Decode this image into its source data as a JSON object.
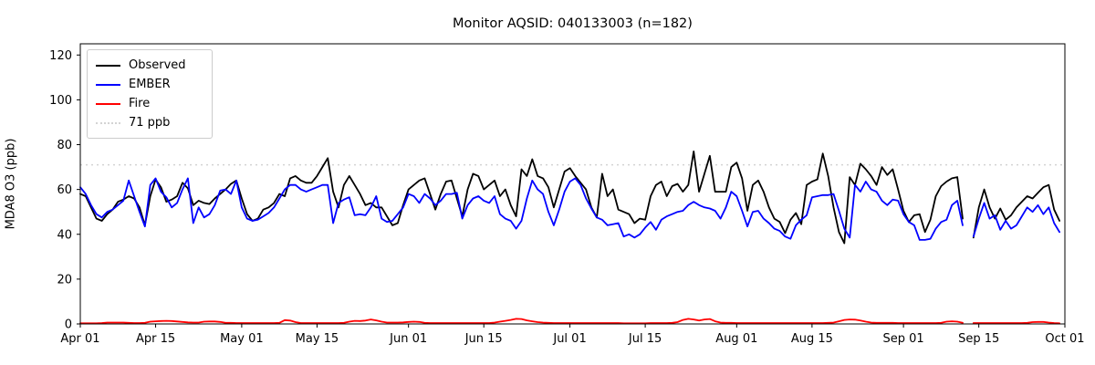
{
  "chart_data": {
    "type": "line",
    "title": "Monitor AQSID: 040133003 (n=182)",
    "ylabel": "MDA8 O3 (ppb)",
    "xlabel": "",
    "ylim": [
      0,
      125
    ],
    "yticks": [
      0,
      20,
      40,
      60,
      80,
      100,
      120
    ],
    "x_axis": {
      "start_label": "Apr 01",
      "end_label": "Oct 01",
      "days_total": 183,
      "tick_days": [
        0,
        14,
        30,
        44,
        61,
        75,
        91,
        105,
        122,
        136,
        153,
        167,
        183
      ],
      "tick_labels": [
        "Apr 01",
        "Apr 15",
        "May 01",
        "May 15",
        "Jun 01",
        "Jun 15",
        "Jul 01",
        "Jul 15",
        "Aug 01",
        "Aug 15",
        "Sep 01",
        "Sep 15",
        "Oct 01"
      ]
    },
    "grid": false,
    "legend_position": "upper-left",
    "note": "daily values Apr 01 - Sep 30; null = missing day (Sep 13)",
    "reference_line": {
      "label": "71 ppb",
      "value": 71,
      "color": "#d3d3d3",
      "style": "dotted"
    },
    "series": [
      {
        "name": "Observed",
        "color": "#000000",
        "values": [
          58,
          57,
          52,
          47,
          46,
          49,
          51,
          54.5,
          55.5,
          57,
          56,
          52,
          44,
          57,
          64.5,
          61,
          54.5,
          55.5,
          57,
          63,
          60.5,
          53,
          55,
          54,
          53.5,
          56,
          58,
          60,
          62.5,
          64,
          56,
          49,
          46,
          47,
          51,
          52,
          54,
          58,
          57,
          65,
          66,
          64,
          63,
          63,
          66,
          70,
          74,
          59,
          52,
          62,
          66,
          62,
          58,
          53,
          54,
          52,
          52,
          48,
          44,
          45,
          53,
          60,
          62,
          64,
          65,
          58,
          51,
          58,
          63.5,
          64,
          56,
          48,
          60,
          67,
          66,
          60,
          62,
          64,
          57,
          60,
          53,
          48,
          69,
          66,
          73.5,
          66,
          65,
          61,
          52,
          60,
          68,
          69.5,
          66,
          63,
          60,
          52,
          47.5,
          67,
          57,
          60,
          51,
          50,
          49,
          45,
          47,
          46.5,
          57,
          62,
          63.5,
          57,
          61.5,
          62.5,
          59,
          62,
          77,
          59,
          67,
          75,
          59,
          59,
          59,
          70,
          72,
          65,
          50.5,
          62,
          64,
          59,
          52,
          47,
          45.5,
          40.5,
          46.5,
          49.5,
          44.5,
          62,
          63.5,
          64.5,
          76,
          66,
          52,
          41,
          36,
          65.5,
          62,
          71.5,
          69,
          66,
          62,
          70,
          66.5,
          69,
          60,
          50.5,
          45.5,
          48.5,
          49,
          41,
          46.5,
          57,
          61.5,
          63.5,
          65,
          65.5,
          47,
          null,
          38.5,
          52,
          60,
          52,
          47,
          51.5,
          46.5,
          48.5,
          52,
          54.5,
          57,
          56,
          58.5,
          61,
          62,
          51,
          46
        ]
      },
      {
        "name": "EMBER",
        "color": "#0000ff",
        "values": [
          61,
          58,
          53,
          49,
          47.5,
          50,
          51,
          53,
          55,
          64,
          57,
          50,
          43.5,
          62,
          65,
          59,
          56.5,
          52,
          54,
          60,
          65,
          45,
          52,
          47.5,
          49,
          53,
          59.5,
          60,
          58,
          64,
          52,
          47,
          46,
          46.5,
          48,
          49.5,
          52,
          56,
          60,
          62,
          62,
          60,
          59,
          60,
          61,
          62,
          62,
          45,
          54,
          55.5,
          56.5,
          48.5,
          49,
          48.5,
          52,
          57,
          47,
          45.5,
          46,
          49,
          52,
          58,
          57,
          54,
          58,
          56,
          53,
          55,
          58,
          58,
          58.5,
          47,
          53,
          56,
          57,
          55,
          54,
          57,
          49,
          47,
          46,
          42.5,
          46,
          56,
          64,
          60,
          58,
          50,
          44,
          51,
          59,
          63.5,
          65,
          62,
          56,
          51.5,
          47.5,
          46.5,
          44,
          44.5,
          45,
          39,
          40,
          38.5,
          40,
          43,
          45.5,
          42,
          46.5,
          48,
          49,
          50,
          50.5,
          53,
          54.5,
          53,
          52,
          51.5,
          50.5,
          47,
          52,
          59,
          57,
          50.5,
          43.5,
          50,
          50.5,
          47,
          45,
          42.5,
          41.5,
          39,
          38,
          44,
          46.5,
          48.5,
          56.5,
          57,
          57.5,
          57.5,
          58,
          50.5,
          42.5,
          38.5,
          62,
          59,
          63.5,
          60,
          59,
          55,
          53,
          55.5,
          55,
          49,
          45.5,
          44,
          37.5,
          37.5,
          38,
          42.5,
          45.5,
          46.5,
          53,
          55,
          44,
          null,
          39,
          47,
          54,
          47,
          48.5,
          42,
          46,
          42.5,
          44,
          48,
          52,
          50,
          53,
          49,
          52,
          45,
          41
        ]
      },
      {
        "name": "Fire",
        "color": "#ff0000",
        "values": [
          0.3,
          0.3,
          0.3,
          0.3,
          0.4,
          0.6,
          0.6,
          0.6,
          0.6,
          0.5,
          0.4,
          0.4,
          0.5,
          1.0,
          1.2,
          1.3,
          1.4,
          1.3,
          1.1,
          0.9,
          0.7,
          0.6,
          0.6,
          1.0,
          1.1,
          1.1,
          0.9,
          0.5,
          0.5,
          0.4,
          0.4,
          0.4,
          0.4,
          0.4,
          0.4,
          0.4,
          0.4,
          0.5,
          1.7,
          1.5,
          0.8,
          0.4,
          0.4,
          0.4,
          0.4,
          0.4,
          0.4,
          0.4,
          0.4,
          0.5,
          1.0,
          1.4,
          1.3,
          1.5,
          2.0,
          1.6,
          1.0,
          0.6,
          0.6,
          0.6,
          0.7,
          0.9,
          1.0,
          0.9,
          0.5,
          0.4,
          0.4,
          0.4,
          0.4,
          0.4,
          0.4,
          0.4,
          0.4,
          0.4,
          0.4,
          0.4,
          0.4,
          0.6,
          1.0,
          1.4,
          1.8,
          2.3,
          2.2,
          1.6,
          1.2,
          0.8,
          0.6,
          0.5,
          0.4,
          0.4,
          0.4,
          0.4,
          0.4,
          0.4,
          0.4,
          0.4,
          0.4,
          0.4,
          0.4,
          0.4,
          0.4,
          0.3,
          0.3,
          0.3,
          0.3,
          0.3,
          0.4,
          0.4,
          0.4,
          0.4,
          0.5,
          0.8,
          1.8,
          2.3,
          2.0,
          1.5,
          2.0,
          2.2,
          1.2,
          0.6,
          0.5,
          0.5,
          0.4,
          0.4,
          0.4,
          0.4,
          0.4,
          0.4,
          0.4,
          0.4,
          0.4,
          0.4,
          0.4,
          0.4,
          0.4,
          0.4,
          0.4,
          0.4,
          0.4,
          0.5,
          0.6,
          1.2,
          1.8,
          2.0,
          1.9,
          1.5,
          1.0,
          0.6,
          0.5,
          0.5,
          0.5,
          0.5,
          0.4,
          0.4,
          0.4,
          0.4,
          0.4,
          0.4,
          0.4,
          0.4,
          0.5,
          1.0,
          1.2,
          1.0,
          0.5,
          null,
          0.4,
          0.4,
          0.4,
          0.4,
          0.4,
          0.4,
          0.4,
          0.4,
          0.4,
          0.4,
          0.5,
          0.8,
          0.9,
          0.9,
          0.6,
          0.4,
          0.3
        ]
      }
    ]
  }
}
